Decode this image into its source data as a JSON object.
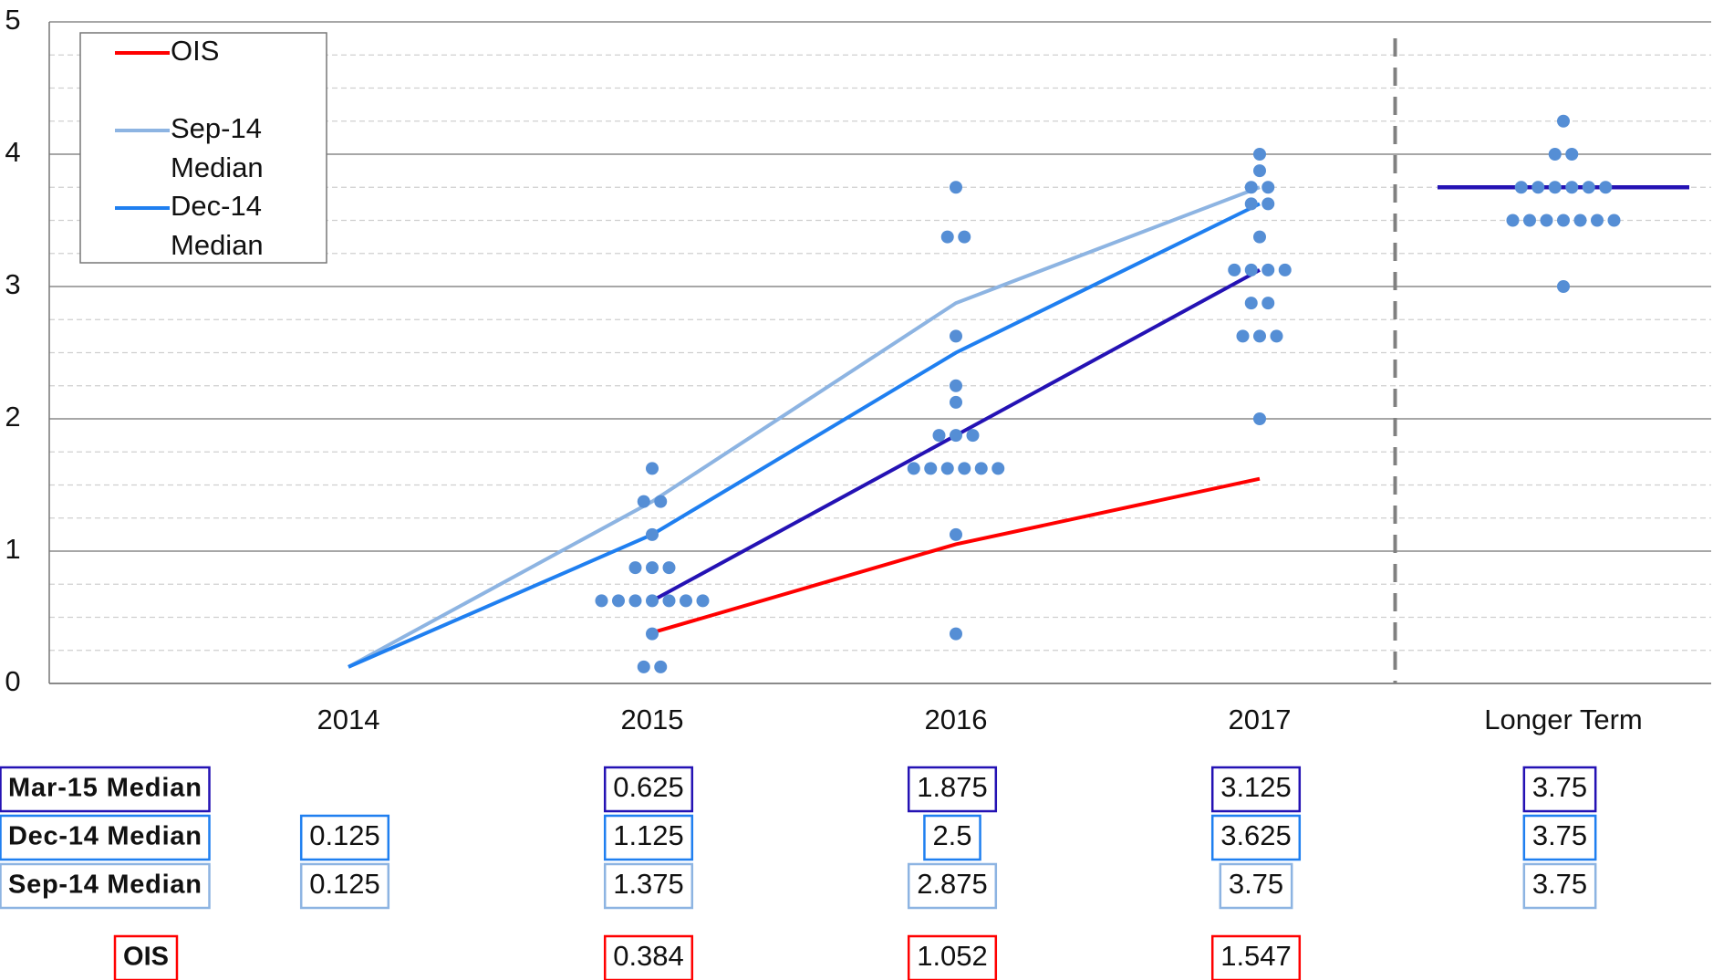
{
  "chart_data": {
    "type": "dot_plot",
    "categories": [
      "2014",
      "2015",
      "2016",
      "2017",
      "Longer Term"
    ],
    "ylim": [
      0,
      5
    ],
    "yticks": [
      0,
      1,
      2,
      3,
      4,
      5
    ],
    "minor_yticks": [
      0.25,
      0.5,
      0.75,
      1.25,
      1.5,
      1.75,
      2.25,
      2.5,
      2.75,
      3.25,
      3.5,
      3.75,
      4.25,
      4.5,
      4.75
    ],
    "grid": true,
    "legend": "top left",
    "dot_color": "#558ed5",
    "dots": [
      [],
      [
        0.125,
        0.125,
        0.375,
        0.625,
        0.625,
        0.625,
        0.625,
        0.625,
        0.625,
        0.625,
        0.875,
        0.875,
        0.875,
        1.125,
        1.375,
        1.375,
        1.625
      ],
      [
        0.375,
        1.125,
        1.625,
        1.625,
        1.625,
        1.625,
        1.625,
        1.625,
        1.875,
        1.875,
        1.875,
        2.125,
        2.25,
        2.625,
        3.375,
        3.375,
        3.75
      ],
      [
        2.0,
        2.625,
        2.625,
        2.625,
        2.875,
        2.875,
        3.125,
        3.125,
        3.125,
        3.125,
        3.375,
        3.625,
        3.625,
        3.75,
        3.75,
        3.875,
        4.0
      ],
      [
        3.0,
        3.5,
        3.5,
        3.5,
        3.5,
        3.5,
        3.5,
        3.5,
        3.75,
        3.75,
        3.75,
        3.75,
        3.75,
        3.75,
        4.0,
        4.0,
        4.25
      ]
    ],
    "series": [
      {
        "name": "OIS",
        "color": "#ff0000",
        "values": [
          null,
          0.384,
          1.052,
          1.547,
          null
        ]
      },
      {
        "name": "Sep-14 Median",
        "color": "#8db4e2",
        "values": [
          0.125,
          1.375,
          2.875,
          3.75,
          3.75
        ]
      },
      {
        "name": "Dec-14 Median",
        "color": "#1f7ff0",
        "values": [
          0.125,
          1.125,
          2.5,
          3.625,
          3.75
        ]
      },
      {
        "name": "Mar-15 Median",
        "color": "#2412b4",
        "values": [
          null,
          0.625,
          1.875,
          3.125,
          3.75
        ],
        "legend": false
      }
    ]
  }
}
